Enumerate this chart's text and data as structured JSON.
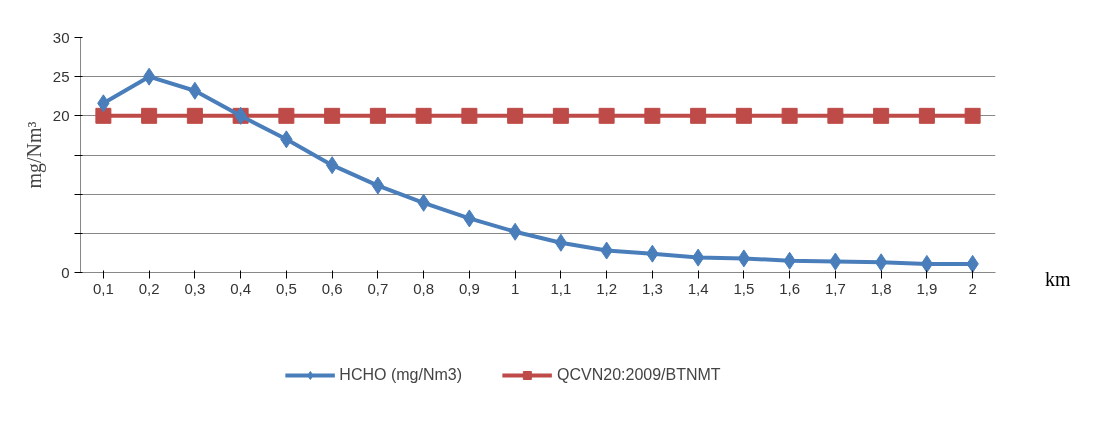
{
  "chart_data": {
    "type": "line",
    "ylabel": "mg/Nm³",
    "xlabel": "km",
    "categories": [
      "0,1",
      "0,2",
      "0,3",
      "0,4",
      "0,5",
      "0,6",
      "0,7",
      "0,8",
      "0,9",
      "1",
      "1,1",
      "1,2",
      "1,3",
      "1,4",
      "1,5",
      "1,6",
      "1,7",
      "1,8",
      "1,9",
      "2"
    ],
    "series": [
      {
        "name": "HCHO (mg/Nm3)",
        "color": "#4a7ebb",
        "marker": "diamond",
        "values": [
          21.6,
          25,
          23.2,
          20,
          17,
          13.7,
          11.1,
          8.9,
          6.9,
          5.2,
          3.8,
          2.8,
          2.4,
          1.9,
          1.8,
          1.5,
          1.4,
          1.3,
          1.1,
          1.1
        ]
      },
      {
        "name": "QCVN20:2009/BTNMT",
        "color": "#be4b48",
        "marker": "square",
        "values": [
          20,
          20,
          20,
          20,
          20,
          20,
          20,
          20,
          20,
          20,
          20,
          20,
          20,
          20,
          20,
          20,
          20,
          20,
          20,
          20
        ]
      }
    ],
    "ylim": [
      0,
      30
    ],
    "yticks": [
      0,
      {
        "value": 5,
        "label": null
      },
      {
        "value": 10,
        "label": null
      },
      {
        "value": 15,
        "label": null
      },
      20,
      25,
      30
    ],
    "grid": "y",
    "legend": "bottom",
    "line_style": "solid"
  }
}
